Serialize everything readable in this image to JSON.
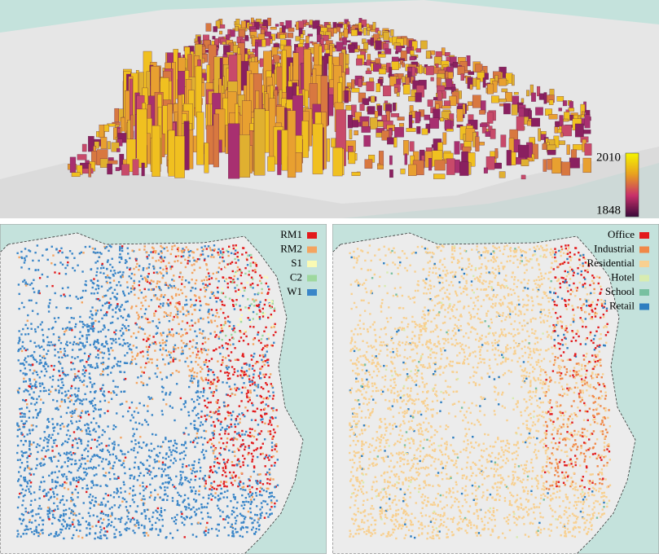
{
  "top_panel": {
    "colorbar": {
      "max": 2010,
      "min": 1848,
      "colors": [
        "#f5f500",
        "#e8a020",
        "#c8306a",
        "#3a0a3a"
      ]
    }
  },
  "left_legend": {
    "items": [
      {
        "label": "RM1",
        "color": "#e31a1c"
      },
      {
        "label": "RM2",
        "color": "#f4a460"
      },
      {
        "label": "S1",
        "color": "#fafab4"
      },
      {
        "label": "C2",
        "color": "#9ed89e"
      },
      {
        "label": "W1",
        "color": "#3a86c8"
      }
    ]
  },
  "right_legend": {
    "items": [
      {
        "label": "Office",
        "color": "#e31a1c"
      },
      {
        "label": "Industrial",
        "color": "#f08848"
      },
      {
        "label": "Residential",
        "color": "#f8d090"
      },
      {
        "label": "Hotel",
        "color": "#d8ecb0"
      },
      {
        "label": "School",
        "color": "#78c0a0"
      },
      {
        "label": "Retail",
        "color": "#2e7ec0"
      }
    ]
  }
}
